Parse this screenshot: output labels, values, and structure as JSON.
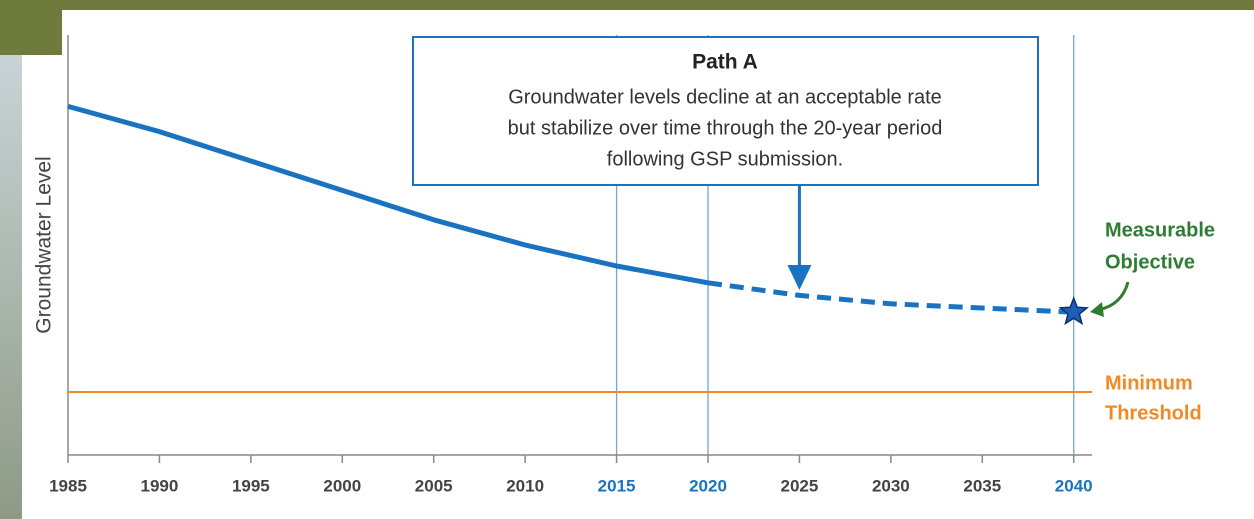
{
  "chart_data": {
    "type": "line",
    "y_label": "Groundwater Level",
    "x": [
      1985,
      1990,
      1995,
      2000,
      2005,
      2010,
      2015,
      2020,
      2025,
      2030,
      2035,
      2040
    ],
    "xlim": [
      1985,
      2041
    ],
    "xticks": [
      1985,
      1990,
      1995,
      2000,
      2005,
      2010,
      2015,
      2020,
      2025,
      2030,
      2035,
      2040
    ],
    "ylim": [
      0,
      100
    ],
    "reference_lines": [
      2015,
      2020,
      2040
    ],
    "series": [
      {
        "color": "#1a73c0",
        "style": "solid",
        "values": [
          83,
          77,
          70,
          63,
          56,
          50,
          45,
          41,
          null,
          null,
          null,
          null
        ]
      },
      {
        "color": "#1a73c0",
        "style": "dashed",
        "values": [
          null,
          null,
          null,
          null,
          null,
          null,
          null,
          41,
          38,
          36,
          35,
          34
        ]
      }
    ],
    "minimum_threshold": {
      "label": [
        "Minimum",
        "Threshold"
      ],
      "value": 15,
      "color": "#f08a24"
    },
    "measurable_objective": {
      "label": [
        "Measurable",
        "Objective"
      ],
      "color": "#2e7d32"
    },
    "annotation": {
      "title": "Path A",
      "lines": [
        "Groundwater levels decline at an acceptable rate",
        "but stabilize over time through the 20-year period",
        "following GSP submission."
      ],
      "x": 2025
    }
  }
}
